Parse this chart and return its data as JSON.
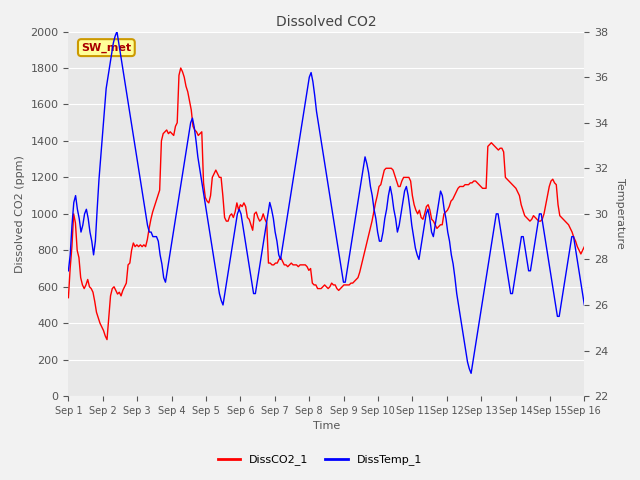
{
  "title": "Dissolved CO2",
  "xlabel": "Time",
  "ylabel_left": "Dissolved CO2 (ppm)",
  "ylabel_right": "Temperature",
  "legend_label": "SW_met",
  "series1_label": "DissCO2_1",
  "series2_label": "DissTemp_1",
  "series1_color": "#FF0000",
  "series2_color": "#0000FF",
  "ylim_left": [
    0,
    2000
  ],
  "ylim_right": [
    22,
    38
  ],
  "fig_bg": "#F2F2F2",
  "plot_bg": "#E8E8E8",
  "x_ticks": [
    "Sep 1",
    "Sep 2",
    "Sep 3",
    "Sep 4",
    "Sep 5",
    "Sep 6",
    "Sep 7",
    "Sep 8",
    "Sep 9",
    "Sep 10",
    "Sep 11",
    "Sep 12",
    "Sep 13",
    "Sep 14",
    "Sep 15",
    "Sep 16"
  ],
  "co2_data": [
    540,
    700,
    820,
    1000,
    950,
    800,
    760,
    650,
    610,
    590,
    610,
    640,
    600,
    590,
    570,
    520,
    460,
    430,
    400,
    380,
    360,
    330,
    310,
    430,
    550,
    590,
    600,
    580,
    560,
    570,
    550,
    580,
    600,
    620,
    720,
    730,
    800,
    840,
    820,
    830,
    820,
    830,
    820,
    830,
    820,
    860,
    920,
    970,
    1010,
    1040,
    1070,
    1100,
    1130,
    1400,
    1440,
    1450,
    1460,
    1440,
    1450,
    1440,
    1430,
    1480,
    1500,
    1760,
    1800,
    1780,
    1750,
    1700,
    1670,
    1620,
    1570,
    1480,
    1460,
    1450,
    1430,
    1440,
    1450,
    1170,
    1090,
    1070,
    1060,
    1100,
    1200,
    1220,
    1240,
    1220,
    1200,
    1200,
    1100,
    980,
    960,
    960,
    990,
    1000,
    980,
    1010,
    1060,
    1020,
    1050,
    1040,
    1060,
    1040,
    980,
    970,
    940,
    910,
    1000,
    1010,
    980,
    960,
    970,
    1000,
    970,
    950,
    730,
    730,
    720,
    720,
    730,
    730,
    750,
    760,
    740,
    720,
    720,
    710,
    720,
    730,
    720,
    720,
    720,
    710,
    720,
    720,
    720,
    720,
    710,
    690,
    700,
    620,
    610,
    610,
    590,
    590,
    590,
    600,
    610,
    600,
    590,
    600,
    620,
    610,
    610,
    590,
    580,
    590,
    600,
    610,
    610,
    610,
    610,
    620,
    620,
    630,
    640,
    650,
    680,
    720,
    760,
    800,
    840,
    880,
    920,
    960,
    1010,
    1060,
    1100,
    1150,
    1160,
    1200,
    1240,
    1250,
    1250,
    1250,
    1250,
    1240,
    1210,
    1180,
    1150,
    1150,
    1180,
    1200,
    1200,
    1200,
    1200,
    1180,
    1100,
    1050,
    1020,
    1000,
    1020,
    980,
    970,
    1000,
    1040,
    1050,
    1020,
    970,
    960,
    940,
    920,
    930,
    940,
    940,
    1000,
    1010,
    1020,
    1040,
    1070,
    1080,
    1100,
    1120,
    1140,
    1150,
    1150,
    1150,
    1160,
    1160,
    1160,
    1170,
    1170,
    1180,
    1180,
    1170,
    1160,
    1150,
    1140,
    1140,
    1140,
    1370,
    1380,
    1390,
    1380,
    1370,
    1360,
    1350,
    1360,
    1360,
    1340,
    1200,
    1190,
    1180,
    1170,
    1160,
    1150,
    1140,
    1120,
    1100,
    1050,
    1020,
    990,
    980,
    970,
    960,
    970,
    990,
    980,
    970,
    960,
    960,
    970,
    1000,
    1050,
    1100,
    1150,
    1180,
    1190,
    1170,
    1160,
    1050,
    990,
    980,
    970,
    960,
    950,
    940,
    920,
    900,
    870,
    850,
    820,
    800,
    780,
    800,
    820
  ],
  "temp_data": [
    27.5,
    28.2,
    29.5,
    30.5,
    30.8,
    30.2,
    29.8,
    29.2,
    29.5,
    30.0,
    30.2,
    29.8,
    29.2,
    28.8,
    28.2,
    28.8,
    30.2,
    31.5,
    32.5,
    33.5,
    34.5,
    35.5,
    36.0,
    36.5,
    37.0,
    37.5,
    37.8,
    38.0,
    37.5,
    37.0,
    36.5,
    36.0,
    35.5,
    35.0,
    34.5,
    34.0,
    33.5,
    33.0,
    32.5,
    32.0,
    31.5,
    31.0,
    30.5,
    30.0,
    29.5,
    29.2,
    29.2,
    29.0,
    29.0,
    29.0,
    28.8,
    28.2,
    27.8,
    27.2,
    27.0,
    27.5,
    28.0,
    28.5,
    29.0,
    29.5,
    30.0,
    30.5,
    31.0,
    31.5,
    32.0,
    32.5,
    33.0,
    33.5,
    34.0,
    34.2,
    33.8,
    33.2,
    32.5,
    32.0,
    31.5,
    31.0,
    30.5,
    30.0,
    29.5,
    29.0,
    28.5,
    28.0,
    27.5,
    27.0,
    26.5,
    26.2,
    26.0,
    26.5,
    27.0,
    27.5,
    28.0,
    28.5,
    29.0,
    29.5,
    30.0,
    30.2,
    30.0,
    29.5,
    29.0,
    28.5,
    28.0,
    27.5,
    27.0,
    26.5,
    26.5,
    27.0,
    27.5,
    28.0,
    28.5,
    29.0,
    29.5,
    30.0,
    30.5,
    30.2,
    29.8,
    29.2,
    28.8,
    28.2,
    28.0,
    28.5,
    29.0,
    29.5,
    30.0,
    30.5,
    31.0,
    31.5,
    32.0,
    32.5,
    33.0,
    33.5,
    34.0,
    34.5,
    35.0,
    35.5,
    36.0,
    36.2,
    35.8,
    35.2,
    34.5,
    34.0,
    33.5,
    33.0,
    32.5,
    32.0,
    31.5,
    31.0,
    30.5,
    30.0,
    29.5,
    29.0,
    28.5,
    28.0,
    27.5,
    27.0,
    27.0,
    27.5,
    28.0,
    28.5,
    29.0,
    29.5,
    30.0,
    30.5,
    31.0,
    31.5,
    32.0,
    32.5,
    32.2,
    31.8,
    31.2,
    30.8,
    30.2,
    29.8,
    29.2,
    28.8,
    28.8,
    29.2,
    29.8,
    30.2,
    30.8,
    31.2,
    30.8,
    30.2,
    29.8,
    29.2,
    29.5,
    30.0,
    30.5,
    31.0,
    31.2,
    30.8,
    30.2,
    29.5,
    29.0,
    28.5,
    28.2,
    28.0,
    28.5,
    29.0,
    29.5,
    30.0,
    30.2,
    29.8,
    29.2,
    29.0,
    29.5,
    30.0,
    30.5,
    31.0,
    30.8,
    30.2,
    29.8,
    29.2,
    28.8,
    28.2,
    27.8,
    27.2,
    26.5,
    26.0,
    25.5,
    25.0,
    24.5,
    24.0,
    23.5,
    23.2,
    23.0,
    23.5,
    24.0,
    24.5,
    25.0,
    25.5,
    26.0,
    26.5,
    27.0,
    27.5,
    28.0,
    28.5,
    29.0,
    29.5,
    30.0,
    30.0,
    29.5,
    29.0,
    28.5,
    28.0,
    27.5,
    27.0,
    26.5,
    26.5,
    27.0,
    27.5,
    28.0,
    28.5,
    29.0,
    29.0,
    28.5,
    28.0,
    27.5,
    27.5,
    28.0,
    28.5,
    29.0,
    29.5,
    30.0,
    30.0,
    29.5,
    29.0,
    28.5,
    28.0,
    27.5,
    27.0,
    26.5,
    26.0,
    25.5,
    25.5,
    26.0,
    26.5,
    27.0,
    27.5,
    28.0,
    28.5,
    29.0,
    29.0,
    28.5,
    28.0,
    27.5,
    27.0,
    26.5,
    26.0
  ]
}
